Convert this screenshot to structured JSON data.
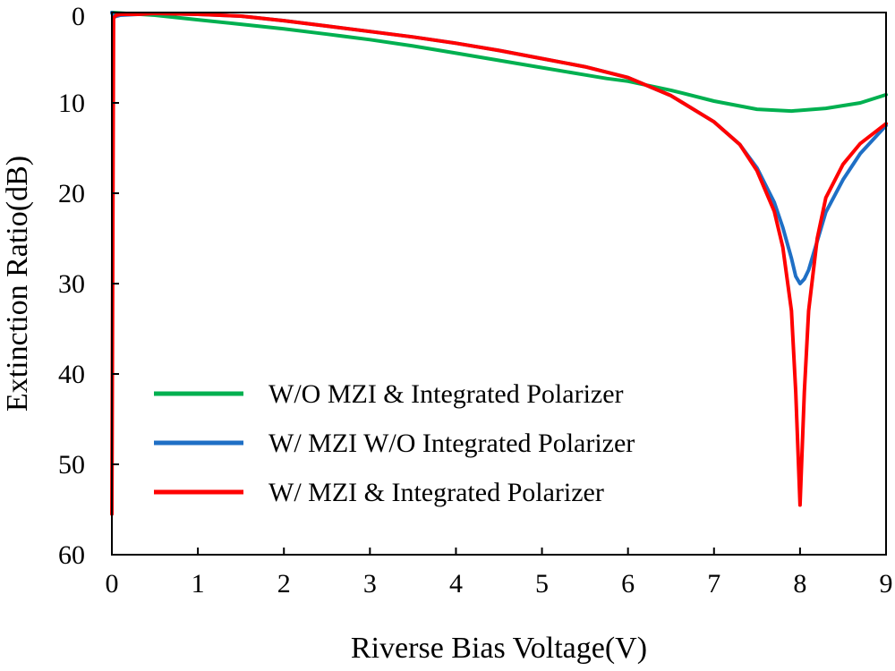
{
  "chart_data": {
    "type": "line",
    "title": "",
    "xlabel": "Riverse Bias Voltage(V)",
    "ylabel": "Extinction Ratio(dB)",
    "xlim": [
      0,
      9
    ],
    "ylim": [
      0,
      60
    ],
    "y_inverted": true,
    "xticks": [
      "0",
      "1",
      "2",
      "3",
      "4",
      "5",
      "6",
      "7",
      "8",
      "9"
    ],
    "yticks": [
      "0",
      "10",
      "20",
      "30",
      "40",
      "50",
      "60"
    ],
    "grid": false,
    "legend_position": "bottom-left",
    "series": [
      {
        "name": "W/O MZI & Integrated Polarizer",
        "color": "#00b050",
        "x": [
          0,
          0.5,
          1,
          1.5,
          2,
          2.5,
          3,
          3.5,
          4,
          4.5,
          5,
          5.5,
          5.75,
          6,
          6.5,
          7,
          7.5,
          7.9,
          8.3,
          8.7,
          9
        ],
        "y": [
          0,
          0.3,
          0.8,
          1.3,
          1.8,
          2.4,
          3.0,
          3.7,
          4.5,
          5.3,
          6.1,
          6.9,
          7.3,
          7.6,
          8.6,
          9.8,
          10.7,
          10.9,
          10.6,
          10.0,
          9.1
        ]
      },
      {
        "name": "W/ MZI W/O Integrated Polarizer",
        "color": "#1f6fc5",
        "x": [
          0,
          0.02,
          0.1,
          0.3,
          0.5,
          1,
          1.5,
          2,
          2.5,
          3,
          3.5,
          4,
          4.5,
          5,
          5.5,
          6,
          6.5,
          7,
          7.3,
          7.5,
          7.7,
          7.8,
          7.9,
          7.95,
          8.0,
          8.05,
          8.1,
          8.2,
          8.3,
          8.5,
          8.7,
          9
        ],
        "y": [
          0,
          0.5,
          0.3,
          0.2,
          0.1,
          0.2,
          0.4,
          0.9,
          1.5,
          2.1,
          2.7,
          3.4,
          4.2,
          5.1,
          6.0,
          7.2,
          9.2,
          12.1,
          14.6,
          17.2,
          21.0,
          23.8,
          27.2,
          29.2,
          30.0,
          29.5,
          28.5,
          25.3,
          22.1,
          18.5,
          15.6,
          12.5
        ]
      },
      {
        "name": "W/ MZI & Integrated Polarizer",
        "color": "#ff0000",
        "x": [
          0,
          0.02,
          0.05,
          0.1,
          0.3,
          0.5,
          1,
          1.5,
          2,
          2.5,
          3,
          3.5,
          4,
          4.5,
          5,
          5.5,
          6,
          6.5,
          7,
          7.3,
          7.5,
          7.7,
          7.8,
          7.9,
          7.95,
          8.0,
          8.05,
          8.1,
          8.2,
          8.3,
          8.5,
          8.7,
          9
        ],
        "y": [
          55.5,
          0.6,
          0.3,
          0.2,
          0.2,
          0.1,
          0.2,
          0.4,
          0.9,
          1.5,
          2.1,
          2.7,
          3.4,
          4.2,
          5.1,
          6.0,
          7.2,
          9.2,
          12.1,
          14.6,
          17.5,
          22.0,
          26.0,
          33.0,
          42.0,
          54.5,
          42.0,
          33.0,
          25.0,
          20.5,
          16.8,
          14.5,
          12.3
        ]
      }
    ]
  }
}
